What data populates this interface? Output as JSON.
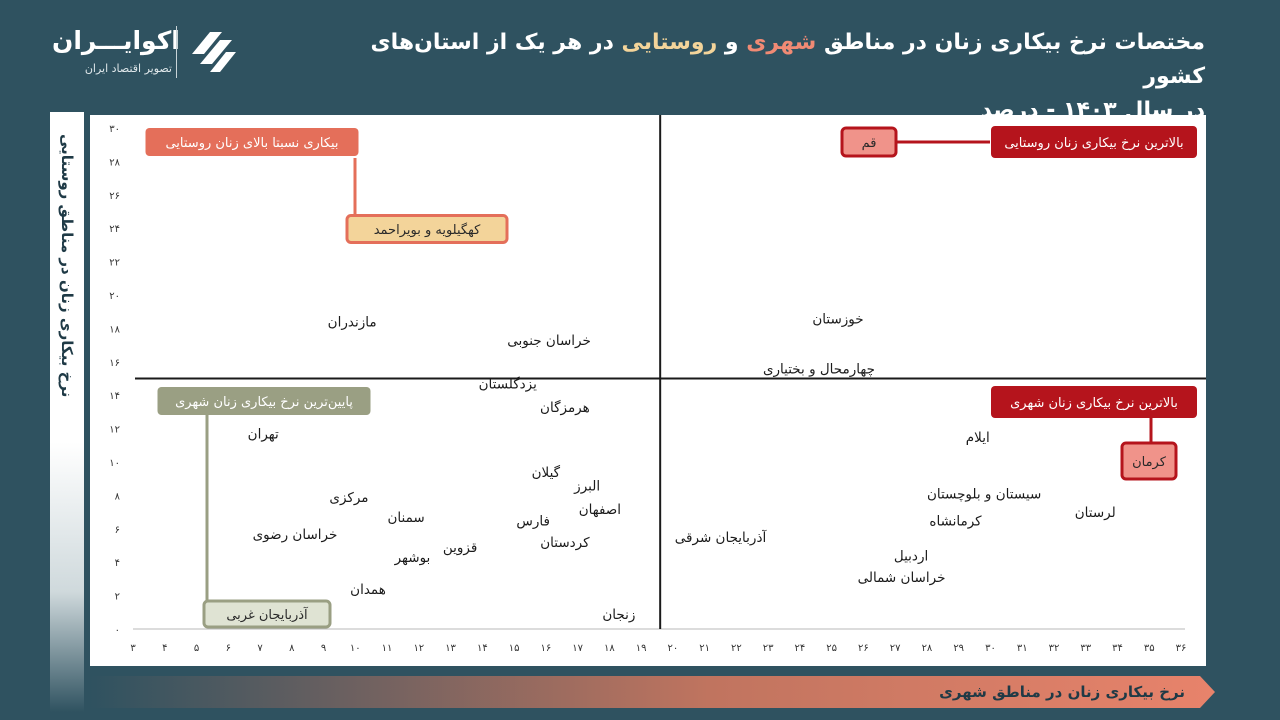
{
  "brand": {
    "name": "اکوایـــران",
    "tagline": "تصویر اقتصاد ایران"
  },
  "title": {
    "line1_start": "مختصات نرخ بیکاری زنان در مناطق ",
    "urban_word": "شهری",
    "connector": " و ",
    "rural_word": "روستایی",
    "line1_end": " در هر یک از استان‌های کشور",
    "line2": "در سال ۱۴۰۳ - درصد"
  },
  "colors": {
    "background": "#2f5260",
    "urban": "#f08a74",
    "rural": "#f3d49a",
    "dark_red": "#b5141c",
    "olive": "#9a9f83",
    "salmon": "#e46f5a"
  },
  "chart_data": {
    "type": "scatter",
    "xlabel": "نرخ بیکاری زنان در مناطق شهری",
    "ylabel": "نرخ بیکاری زنان در مناطق روستایی",
    "xlim": [
      3,
      36
    ],
    "ylim": [
      0,
      30
    ],
    "x_ticks": [
      "۳",
      "۴",
      "۵",
      "۶",
      "۷",
      "۸",
      "۹",
      "۱۰",
      "۱۱",
      "۱۲",
      "۱۳",
      "۱۴",
      "۱۵",
      "۱۶",
      "۱۷",
      "۱۸",
      "۱۹",
      "۲۰",
      "۲۱",
      "۲۲",
      "۲۳",
      "۲۴",
      "۲۵",
      "۲۶",
      "۲۷",
      "۲۸",
      "۲۹",
      "۳۰",
      "۳۱",
      "۳۲",
      "۳۳",
      "۳۴",
      "۳۵",
      "۳۶"
    ],
    "y_ticks": [
      "۰",
      "۲",
      "۴",
      "۶",
      "۸",
      "۱۰",
      "۱۲",
      "۱۴",
      "۱۶",
      "۱۸",
      "۲۰",
      "۲۲",
      "۲۴",
      "۲۶",
      "۲۸",
      "۳۰"
    ],
    "divider": {
      "x": 19.6,
      "y": 15.0
    },
    "points": [
      {
        "name": "مازندران",
        "x": 9.9,
        "y": 18.4
      },
      {
        "name": "خراسان جنوبی",
        "x": 16.1,
        "y": 17.3
      },
      {
        "name": "خوزستان",
        "x": 25.2,
        "y": 18.6
      },
      {
        "name": "چهارمحال و بختیاری",
        "x": 24.6,
        "y": 15.6
      },
      {
        "name": "یزدگلستان",
        "x": 14.8,
        "y": 14.7
      },
      {
        "name": "هرمزگان",
        "x": 16.6,
        "y": 13.3
      },
      {
        "name": "تهران",
        "x": 7.1,
        "y": 11.7
      },
      {
        "name": "ایلام",
        "x": 29.6,
        "y": 11.5
      },
      {
        "name": "گیلان",
        "x": 16.0,
        "y": 9.4
      },
      {
        "name": "البرز",
        "x": 17.3,
        "y": 8.6
      },
      {
        "name": "سیستان و بلوچستان",
        "x": 29.8,
        "y": 8.1
      },
      {
        "name": "مرکزی",
        "x": 9.8,
        "y": 7.9
      },
      {
        "name": "اصفهان",
        "x": 17.7,
        "y": 7.2
      },
      {
        "name": "لرستان",
        "x": 33.3,
        "y": 7.0
      },
      {
        "name": "سمنان",
        "x": 11.6,
        "y": 6.7
      },
      {
        "name": "فارس",
        "x": 15.6,
        "y": 6.5
      },
      {
        "name": "کرمانشاه",
        "x": 28.9,
        "y": 6.5
      },
      {
        "name": "خراسان رضوی",
        "x": 8.1,
        "y": 5.7
      },
      {
        "name": "آذربایجان شرقی",
        "x": 21.5,
        "y": 5.5
      },
      {
        "name": "کردستان",
        "x": 16.6,
        "y": 5.2
      },
      {
        "name": "قزوین",
        "x": 13.3,
        "y": 4.9
      },
      {
        "name": "بوشهر",
        "x": 11.8,
        "y": 4.3
      },
      {
        "name": "اردبیل",
        "x": 27.5,
        "y": 4.4
      },
      {
        "name": "خراسان شمالی",
        "x": 27.2,
        "y": 3.1
      },
      {
        "name": "همدان",
        "x": 10.4,
        "y": 2.4
      },
      {
        "name": "زنجان",
        "x": 18.3,
        "y": 0.9
      }
    ],
    "annotations": [
      {
        "id": "rural-high",
        "header": "بیکاری نسبتا بالای زنان روستایی",
        "provinces": [
          "کهگیلویه و بویراحمد"
        ]
      },
      {
        "id": "rural-max",
        "header": "بالاترین نرخ بیکاری زنان روستایی",
        "provinces": [
          "قم"
        ]
      },
      {
        "id": "urban-max",
        "header": "بالاترین نرخ بیکاری زنان شهری",
        "provinces": [
          "کرمان"
        ]
      },
      {
        "id": "urban-min",
        "header": "پایین‌ترین نرخ بیکاری زنان شهری",
        "provinces": [
          "آذربایجان غربی"
        ]
      }
    ]
  }
}
